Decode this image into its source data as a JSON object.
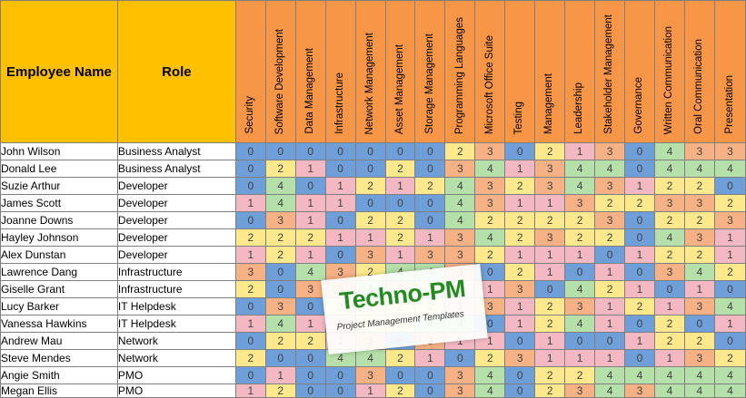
{
  "headers": {
    "employee_name": "Employee Name",
    "role": "Role",
    "skills": [
      "Security",
      "Software Development",
      "Data Management",
      "Infrastructure",
      "Network Management",
      "Asset Management",
      "Storage Management",
      "Programming Languages",
      "Microsoft Office Suite",
      "Testing",
      "Management",
      "Leadership",
      "Stakeholder Management",
      "Governance",
      "Written Communication",
      "Oral Communication",
      "Presentation"
    ]
  },
  "rows": [
    {
      "name": "John Wilson",
      "role": "Business Analyst",
      "levels": [
        0,
        0,
        0,
        0,
        0,
        0,
        0,
        2,
        3,
        0,
        2,
        1,
        3,
        0,
        4,
        3,
        3
      ]
    },
    {
      "name": "Donald Lee",
      "role": "Business Analyst",
      "levels": [
        0,
        2,
        1,
        0,
        0,
        2,
        0,
        3,
        4,
        1,
        3,
        4,
        4,
        0,
        4,
        4,
        4
      ]
    },
    {
      "name": "Suzie Arthur",
      "role": "Developer",
      "levels": [
        0,
        4,
        0,
        1,
        2,
        1,
        2,
        4,
        3,
        2,
        3,
        4,
        3,
        1,
        2,
        2,
        0
      ]
    },
    {
      "name": "James Scott",
      "role": "Developer",
      "levels": [
        1,
        4,
        1,
        1,
        0,
        0,
        0,
        4,
        3,
        1,
        1,
        3,
        2,
        2,
        3,
        3,
        2
      ]
    },
    {
      "name": "Joanne Downs",
      "role": "Developer",
      "levels": [
        0,
        3,
        1,
        0,
        2,
        2,
        0,
        4,
        2,
        2,
        2,
        2,
        3,
        0,
        2,
        2,
        3
      ]
    },
    {
      "name": "Hayley Johnson",
      "role": "Developer",
      "levels": [
        2,
        2,
        2,
        1,
        1,
        2,
        1,
        3,
        4,
        2,
        3,
        2,
        2,
        0,
        4,
        3,
        1
      ]
    },
    {
      "name": "Alex Dunstan",
      "role": "Developer",
      "levels": [
        1,
        2,
        1,
        0,
        3,
        1,
        3,
        3,
        2,
        1,
        1,
        1,
        0,
        1,
        2,
        2,
        1
      ]
    },
    {
      "name": "Lawrence Dang",
      "role": "Infrastructure",
      "levels": [
        3,
        0,
        4,
        3,
        2,
        4,
        4,
        3,
        0,
        2,
        1,
        0,
        1,
        0,
        3,
        4,
        2
      ]
    },
    {
      "name": "Giselle Grant",
      "role": "Infrastructure",
      "levels": [
        2,
        0,
        3,
        3,
        4,
        3,
        2,
        1,
        1,
        3,
        0,
        4,
        2,
        1,
        0,
        1,
        0
      ]
    },
    {
      "name": "Lucy Barker",
      "role": "IT Helpdesk",
      "levels": [
        0,
        3,
        0,
        2,
        2,
        2,
        2,
        1,
        3,
        1,
        2,
        3,
        1,
        2,
        1,
        3,
        4
      ]
    },
    {
      "name": "Vanessa Hawkins",
      "role": "IT Helpdesk",
      "levels": [
        1,
        4,
        1,
        1,
        2,
        2,
        4,
        4,
        0,
        1,
        2,
        4,
        1,
        0,
        2,
        0,
        1
      ]
    },
    {
      "name": "Andrew Mau",
      "role": "Network",
      "levels": [
        0,
        2,
        2,
        1,
        3,
        0,
        3,
        1,
        1,
        0,
        1,
        0,
        0,
        1,
        2,
        2,
        0
      ]
    },
    {
      "name": "Steve Mendes",
      "role": "Network",
      "levels": [
        2,
        0,
        0,
        4,
        4,
        2,
        1,
        0,
        2,
        3,
        1,
        1,
        1,
        0,
        1,
        3,
        2
      ]
    },
    {
      "name": "Angie Smith",
      "role": "PMO",
      "levels": [
        0,
        1,
        0,
        0,
        3,
        0,
        0,
        3,
        4,
        0,
        2,
        2,
        4,
        4,
        4,
        4,
        4
      ]
    },
    {
      "name": "Megan Ellis",
      "role": "PMO",
      "levels": [
        1,
        2,
        0,
        0,
        1,
        2,
        0,
        3,
        4,
        0,
        2,
        3,
        4,
        3,
        4,
        4,
        4
      ]
    }
  ],
  "watermark": {
    "title": "Techno-PM",
    "subtitle": "Project Management Templates"
  },
  "colors": {
    "header_left": "#ffc000",
    "header_skills": "#f79646",
    "level_0": "#6f9fd8",
    "level_1": "#f4b8c3",
    "level_2": "#ffe98c",
    "level_3": "#f6b184",
    "level_4": "#b5e0a9"
  }
}
